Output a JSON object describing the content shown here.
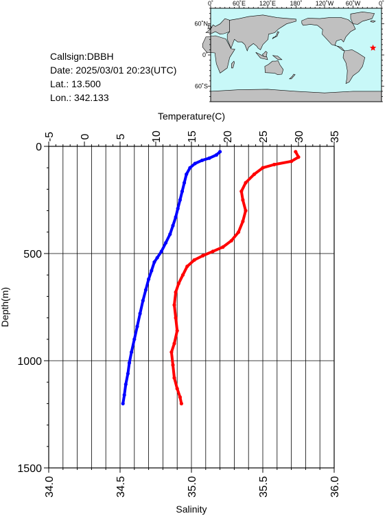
{
  "station": {
    "callsign": "Callsign:DBBH",
    "date": "Date:  2025/03/01 20:23(UTC)",
    "lat": "Lat.:  13.500",
    "lon": "Lon.:  342.133"
  },
  "map": {
    "lon_labels": [
      "0˚",
      "60˚E",
      "120˚E",
      "180˚",
      "120˚W",
      "60˚W",
      "0˚"
    ],
    "lat_labels": [
      "60˚N",
      "0˚",
      "60˚S"
    ],
    "station_marker": {
      "lon": 342.133,
      "lat": 13.5
    },
    "colors": {
      "ocean": "#c8f8f8",
      "land": "#c0c0c0",
      "marker": "#ff0000"
    }
  },
  "chart_data": {
    "type": "scatter",
    "top_axis": {
      "label": "Temperature(C)",
      "range": [
        -5,
        35
      ],
      "ticks": [
        "-5",
        "0",
        "5",
        "10",
        "15",
        "20",
        "25",
        "30",
        "35"
      ]
    },
    "bottom_axis": {
      "label": "Salinity",
      "range": [
        34.0,
        36.0
      ],
      "ticks": [
        "34.0",
        "34.5",
        "35.0",
        "35.5",
        "36.0"
      ]
    },
    "y_axis": {
      "label": "Depth(m)",
      "range": [
        0,
        1500
      ],
      "inverted": true,
      "ticks": [
        "0",
        "500",
        "1000",
        "1500"
      ]
    },
    "grid": true,
    "series": [
      {
        "quantity": "temperature",
        "color": "#0000ff",
        "points": [
          [
            19.0,
            25
          ],
          [
            18.5,
            40
          ],
          [
            17.5,
            55
          ],
          [
            16.5,
            65
          ],
          [
            15.5,
            80
          ],
          [
            14.8,
            100
          ],
          [
            14.3,
            130
          ],
          [
            14.0,
            170
          ],
          [
            13.7,
            210
          ],
          [
            13.4,
            250
          ],
          [
            13.1,
            290
          ],
          [
            12.8,
            330
          ],
          [
            12.4,
            370
          ],
          [
            12.0,
            410
          ],
          [
            11.4,
            450
          ],
          [
            10.8,
            490
          ],
          [
            10.2,
            520
          ],
          [
            9.8,
            540
          ],
          [
            9.4,
            580
          ],
          [
            9.0,
            620
          ],
          [
            8.6,
            670
          ],
          [
            8.2,
            720
          ],
          [
            7.8,
            780
          ],
          [
            7.4,
            840
          ],
          [
            7.0,
            900
          ],
          [
            6.6,
            960
          ],
          [
            6.3,
            1010
          ],
          [
            6.1,
            1060
          ],
          [
            5.8,
            1110
          ],
          [
            5.6,
            1160
          ],
          [
            5.4,
            1200
          ]
        ]
      },
      {
        "quantity": "salinity",
        "color": "#ff0000",
        "points": [
          [
            35.73,
            25
          ],
          [
            35.75,
            50
          ],
          [
            35.7,
            70
          ],
          [
            35.58,
            85
          ],
          [
            35.5,
            100
          ],
          [
            35.44,
            130
          ],
          [
            35.38,
            170
          ],
          [
            35.35,
            210
          ],
          [
            35.36,
            250
          ],
          [
            35.38,
            300
          ],
          [
            35.36,
            350
          ],
          [
            35.33,
            400
          ],
          [
            35.28,
            440
          ],
          [
            35.22,
            470
          ],
          [
            35.15,
            490
          ],
          [
            35.08,
            510
          ],
          [
            35.02,
            530
          ],
          [
            34.97,
            560
          ],
          [
            34.94,
            600
          ],
          [
            34.91,
            640
          ],
          [
            34.89,
            680
          ],
          [
            34.88,
            740
          ],
          [
            34.89,
            800
          ],
          [
            34.9,
            860
          ],
          [
            34.88,
            920
          ],
          [
            34.86,
            960
          ],
          [
            34.87,
            1020
          ],
          [
            34.88,
            1080
          ],
          [
            34.9,
            1130
          ],
          [
            34.92,
            1170
          ],
          [
            34.93,
            1200
          ]
        ]
      }
    ]
  }
}
